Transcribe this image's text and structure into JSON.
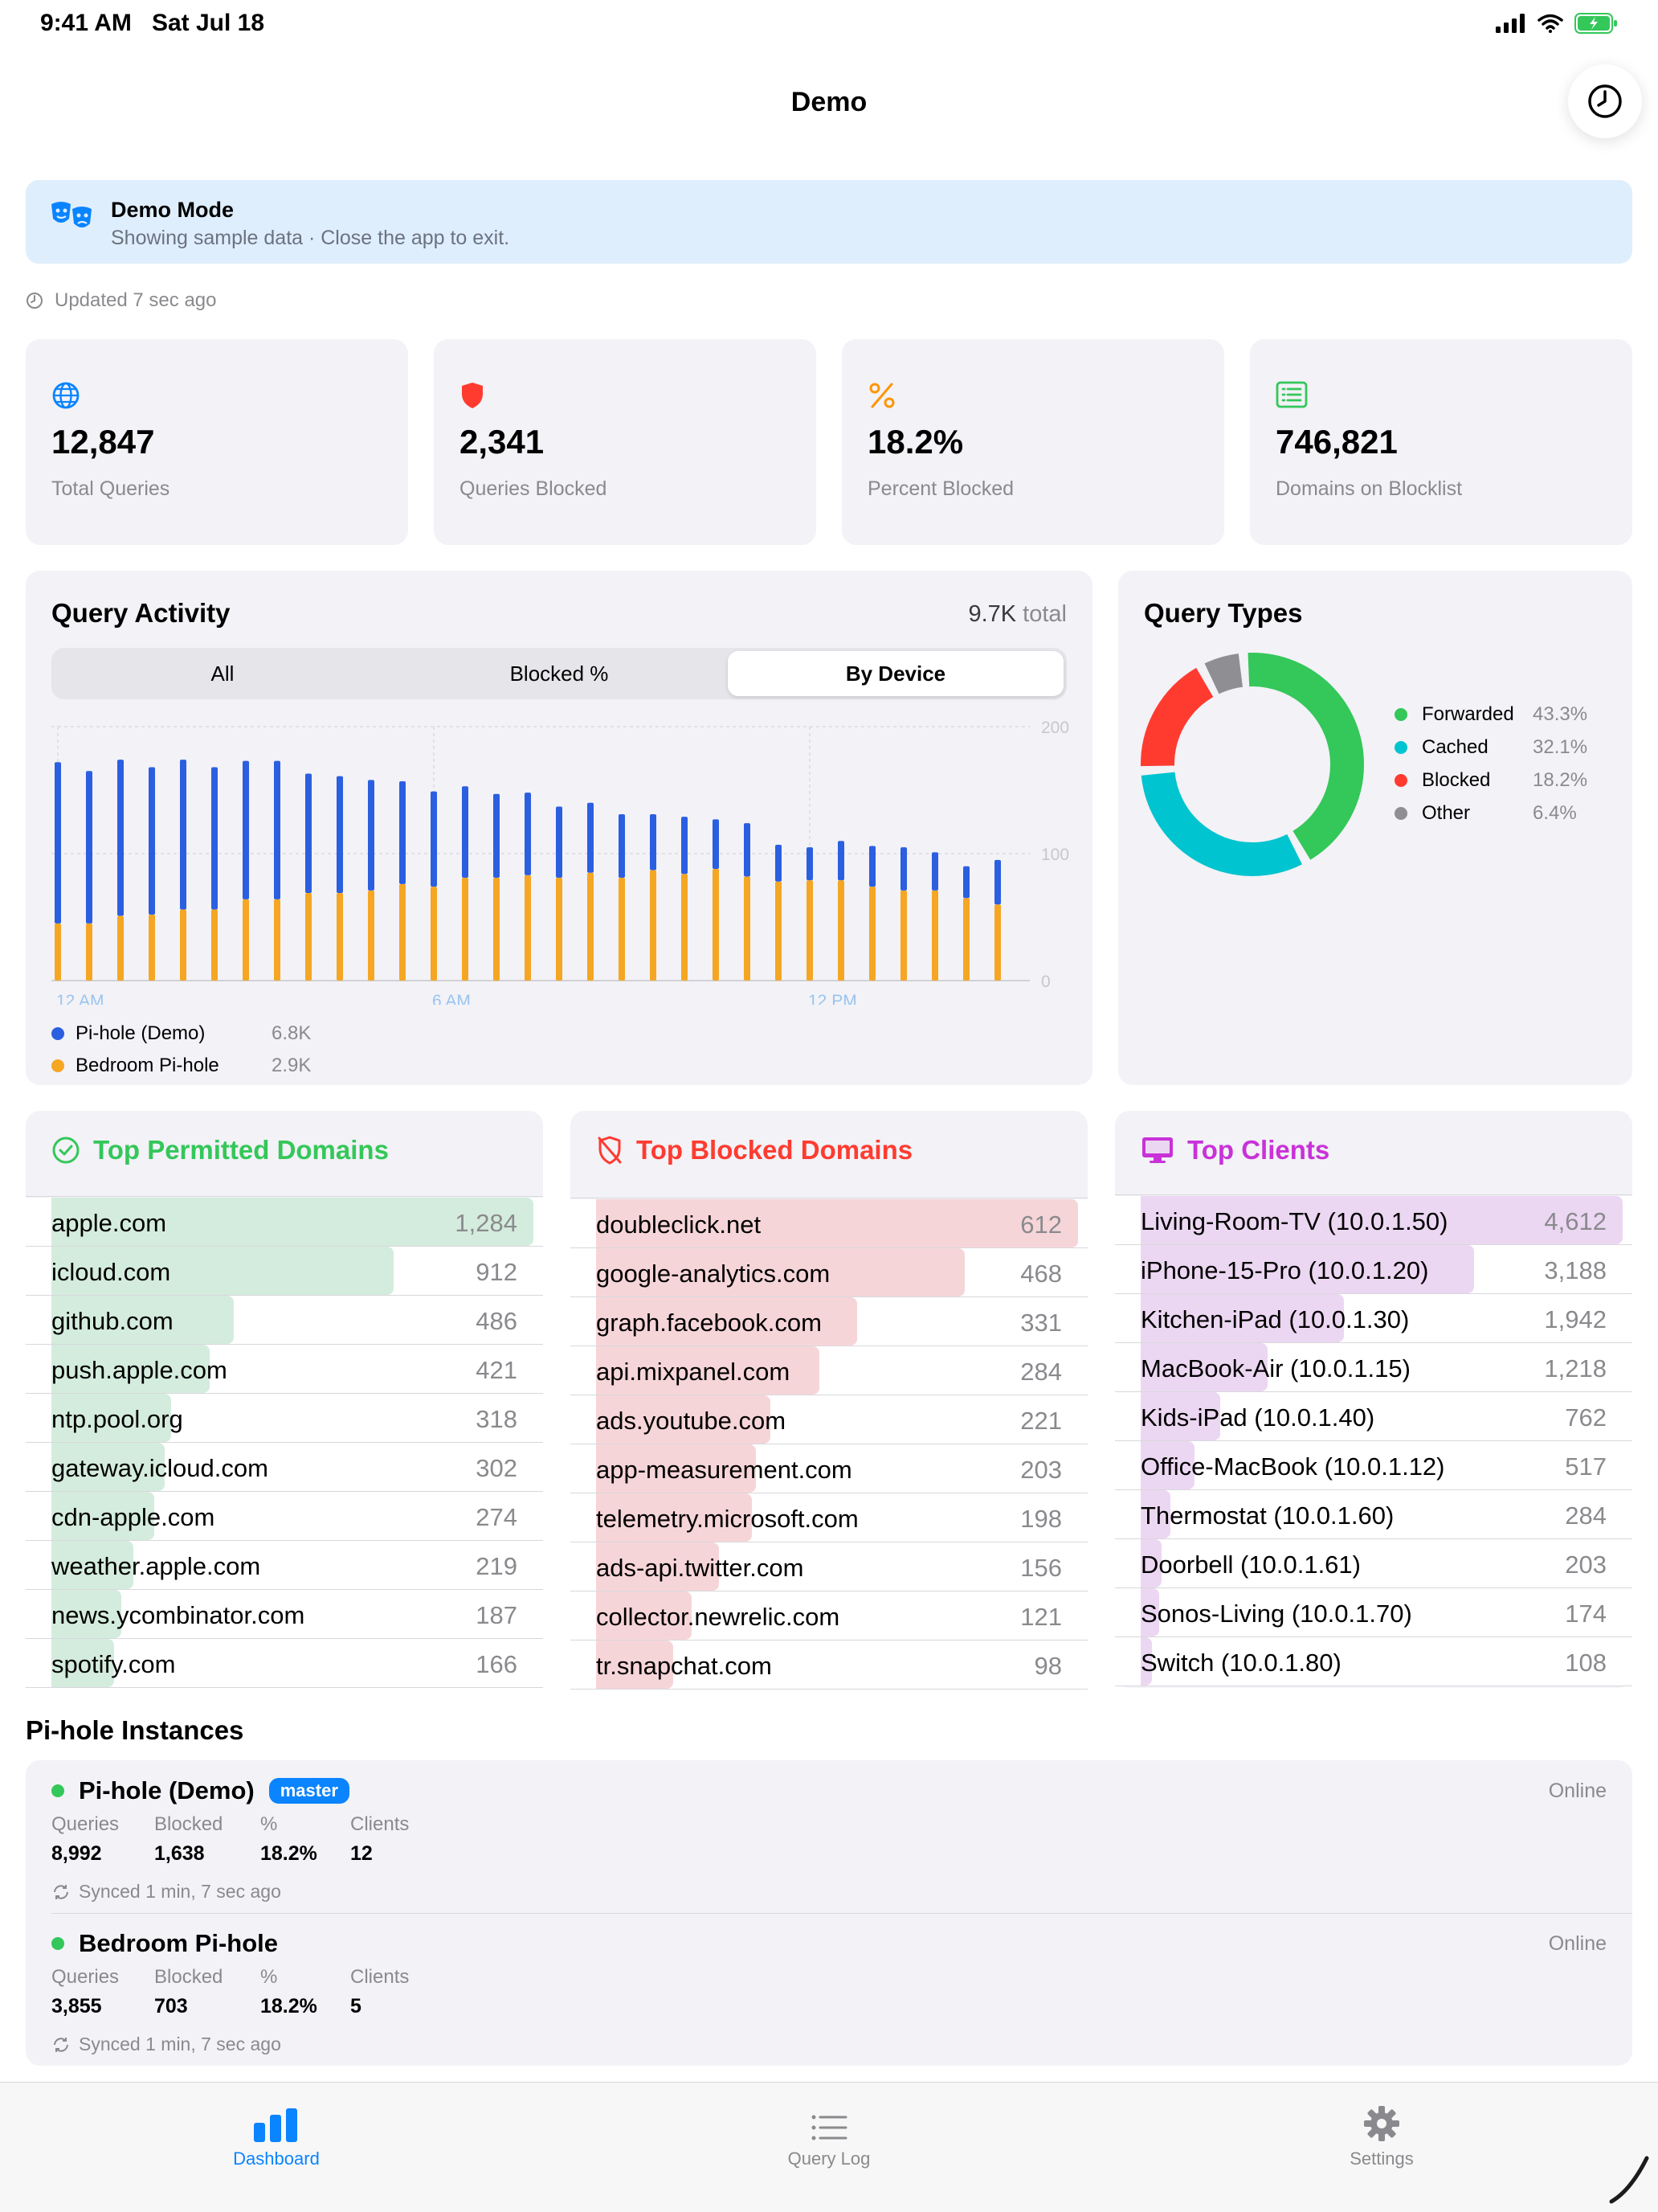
{
  "status": {
    "time": "9:41 AM",
    "date": "Sat Jul 18"
  },
  "nav": {
    "title": "Demo"
  },
  "banner": {
    "title": "Demo Mode",
    "subtitle": "Showing sample data · Close the app to exit."
  },
  "updated": "Updated 7 sec ago",
  "stats": [
    {
      "value": "12,847",
      "label": "Total Queries",
      "icon": "globe-icon",
      "color": "#0a84ff"
    },
    {
      "value": "2,341",
      "label": "Queries Blocked",
      "icon": "shield-icon",
      "color": "#ff3b30"
    },
    {
      "value": "18.2%",
      "label": "Percent Blocked",
      "icon": "percent-icon",
      "color": "#ff9500"
    },
    {
      "value": "746,821",
      "label": "Domains on Blocklist",
      "icon": "list-icon",
      "color": "#34c759"
    }
  ],
  "activity": {
    "title": "Query Activity",
    "total_value": "9.7K",
    "total_suffix": "total",
    "segments": [
      "All",
      "Blocked %",
      "By Device"
    ],
    "selected_segment": "By Device",
    "legend": [
      {
        "name": "Pi-hole (Demo)",
        "value": "6.8K",
        "color": "#2b5fe0"
      },
      {
        "name": "Bedroom Pi-hole",
        "value": "2.9K",
        "color": "#f5a623"
      }
    ]
  },
  "chart_data": {
    "type": "bar",
    "stacked": true,
    "x_tick_labels": [
      "12 AM",
      "6 AM",
      "12 PM"
    ],
    "y_ticks": [
      0,
      100,
      200
    ],
    "ylim": [
      0,
      200
    ],
    "series": [
      {
        "name": "Bedroom Pi-hole",
        "color": "#f5a623",
        "values": [
          45,
          45,
          51,
          52,
          56,
          56,
          64,
          64,
          69,
          69,
          71,
          76,
          74,
          81,
          81,
          83,
          81,
          85,
          81,
          87,
          84,
          88,
          82,
          78,
          79,
          79,
          74,
          71,
          71,
          65,
          60
        ]
      },
      {
        "name": "Pi-hole (Demo)",
        "color": "#2b5fe0",
        "values": [
          127,
          120,
          123,
          116,
          118,
          112,
          109,
          109,
          94,
          92,
          87,
          81,
          75,
          72,
          66,
          65,
          56,
          55,
          50,
          44,
          45,
          39,
          42,
          29,
          26,
          31,
          32,
          34,
          30,
          25,
          35
        ]
      }
    ]
  },
  "query_types": {
    "title": "Query Types",
    "items": [
      {
        "name": "Forwarded",
        "percent": "43.3%",
        "value": 43.3,
        "color": "#34c759"
      },
      {
        "name": "Cached",
        "percent": "32.1%",
        "value": 32.1,
        "color": "#00c4cf"
      },
      {
        "name": "Blocked",
        "percent": "18.2%",
        "value": 18.2,
        "color": "#ff3b30"
      },
      {
        "name": "Other",
        "percent": "6.4%",
        "value": 6.4,
        "color": "#8e8e93"
      }
    ]
  },
  "permitted": {
    "title": "Top Permitted Domains",
    "color": "#34c759",
    "bar_color": "#d4ecdd",
    "max": 1284,
    "items": [
      {
        "name": "apple.com",
        "count": "1,284",
        "value": 1284
      },
      {
        "name": "icloud.com",
        "count": "912",
        "value": 912
      },
      {
        "name": "github.com",
        "count": "486",
        "value": 486
      },
      {
        "name": "push.apple.com",
        "count": "421",
        "value": 421
      },
      {
        "name": "ntp.pool.org",
        "count": "318",
        "value": 318
      },
      {
        "name": "gateway.icloud.com",
        "count": "302",
        "value": 302
      },
      {
        "name": "cdn-apple.com",
        "count": "274",
        "value": 274
      },
      {
        "name": "weather.apple.com",
        "count": "219",
        "value": 219
      },
      {
        "name": "news.ycombinator.com",
        "count": "187",
        "value": 187
      },
      {
        "name": "spotify.com",
        "count": "166",
        "value": 166
      }
    ]
  },
  "blocked": {
    "title": "Top Blocked Domains",
    "color": "#ff3b30",
    "bar_color": "#f6d5d8",
    "max": 612,
    "items": [
      {
        "name": "doubleclick.net",
        "count": "612",
        "value": 612
      },
      {
        "name": "google-analytics.com",
        "count": "468",
        "value": 468
      },
      {
        "name": "graph.facebook.com",
        "count": "331",
        "value": 331
      },
      {
        "name": "api.mixpanel.com",
        "count": "284",
        "value": 284
      },
      {
        "name": "ads.youtube.com",
        "count": "221",
        "value": 221
      },
      {
        "name": "app-measurement.com",
        "count": "203",
        "value": 203
      },
      {
        "name": "telemetry.microsoft.com",
        "count": "198",
        "value": 198
      },
      {
        "name": "ads-api.twitter.com",
        "count": "156",
        "value": 156
      },
      {
        "name": "collector.newrelic.com",
        "count": "121",
        "value": 121
      },
      {
        "name": "tr.snapchat.com",
        "count": "98",
        "value": 98
      }
    ]
  },
  "clients": {
    "title": "Top Clients",
    "color": "#c932d8",
    "bar_color": "#ecd7f2",
    "max": 4612,
    "items": [
      {
        "name": "Living-Room-TV (10.0.1.50)",
        "count": "4,612",
        "value": 4612
      },
      {
        "name": "iPhone-15-Pro (10.0.1.20)",
        "count": "3,188",
        "value": 3188
      },
      {
        "name": "Kitchen-iPad (10.0.1.30)",
        "count": "1,942",
        "value": 1942
      },
      {
        "name": "MacBook-Air (10.0.1.15)",
        "count": "1,218",
        "value": 1218
      },
      {
        "name": "Kids-iPad (10.0.1.40)",
        "count": "762",
        "value": 762
      },
      {
        "name": "Office-MacBook (10.0.1.12)",
        "count": "517",
        "value": 517
      },
      {
        "name": "Thermostat (10.0.1.60)",
        "count": "284",
        "value": 284
      },
      {
        "name": "Doorbell (10.0.1.61)",
        "count": "203",
        "value": 203
      },
      {
        "name": "Sonos-Living (10.0.1.70)",
        "count": "174",
        "value": 174
      },
      {
        "name": "Switch (10.0.1.80)",
        "count": "108",
        "value": 108
      }
    ]
  },
  "instances": {
    "title": "Pi-hole Instances",
    "labels": {
      "queries": "Queries",
      "blocked": "Blocked",
      "percent": "%",
      "clients": "Clients"
    },
    "items": [
      {
        "name": "Pi-hole (Demo)",
        "badge": "master",
        "status": "Online",
        "queries": "8,992",
        "blocked": "1,638",
        "percent": "18.2%",
        "clients": "12",
        "synced": "Synced 1 min, 7 sec ago"
      },
      {
        "name": "Bedroom Pi-hole",
        "badge": "",
        "status": "Online",
        "queries": "3,855",
        "blocked": "703",
        "percent": "18.2%",
        "clients": "5",
        "synced": "Synced 1 min, 7 sec ago"
      }
    ]
  },
  "tabs": [
    {
      "label": "Dashboard",
      "icon": "bar-chart-icon",
      "active": true
    },
    {
      "label": "Query Log",
      "icon": "list-lines-icon",
      "active": false
    },
    {
      "label": "Settings",
      "icon": "gear-icon",
      "active": false
    }
  ]
}
